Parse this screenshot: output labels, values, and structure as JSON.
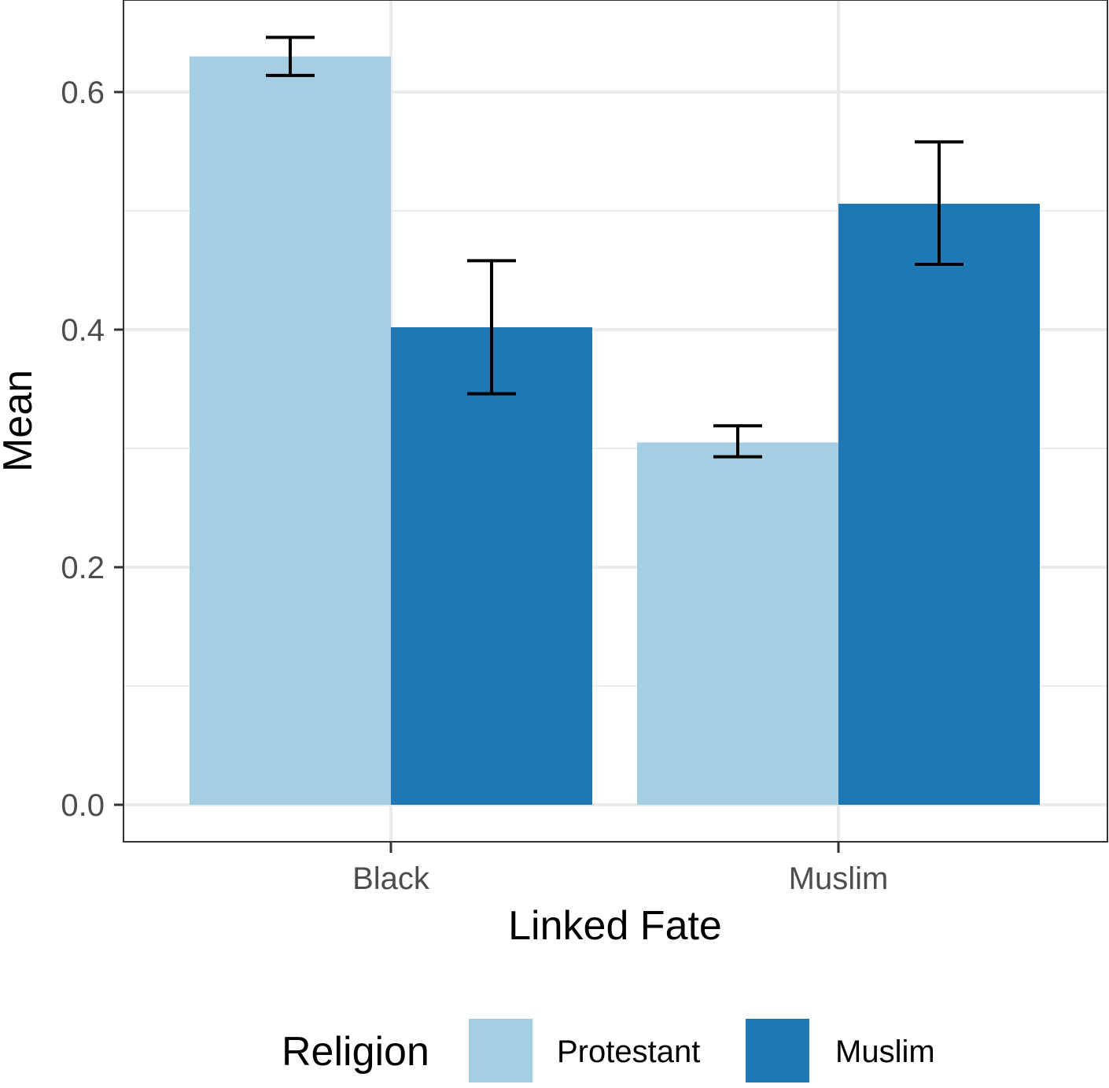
{
  "chart_data": {
    "type": "bar",
    "title": "",
    "xlabel": "Linked Fate",
    "ylabel": "Mean",
    "categories": [
      "Black",
      "Muslim"
    ],
    "ylim": [
      -0.0333,
      0.6667
    ],
    "yticks": [
      0.0,
      0.2,
      0.4,
      0.6
    ],
    "ytick_labels": [
      "0.0",
      "0.2",
      "0.4",
      "0.6"
    ],
    "grid": true,
    "series": [
      {
        "name": "Protestant",
        "color": "#a6cee3",
        "values": [
          0.63,
          0.305
        ],
        "error_low": [
          0.614,
          0.293
        ],
        "error_high": [
          0.646,
          0.319
        ]
      },
      {
        "name": "Muslim",
        "color": "#1f78b4",
        "values": [
          0.402,
          0.506
        ],
        "error_low": [
          0.346,
          0.455
        ],
        "error_high": [
          0.458,
          0.558
        ]
      }
    ],
    "legend": {
      "title": "Religion",
      "position": "bottom"
    }
  }
}
